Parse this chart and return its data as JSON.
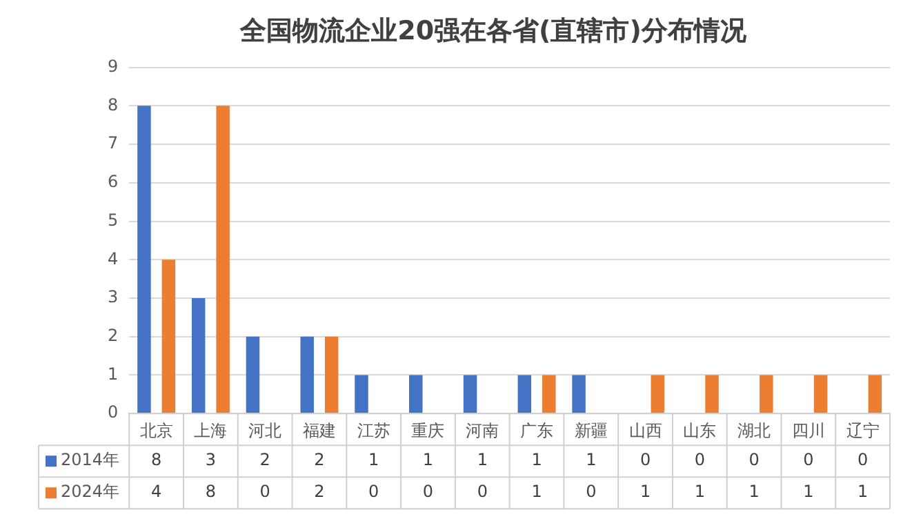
{
  "chart_data": {
    "type": "bar",
    "title": "全国物流企业20强在各省(直辖市)分布情况",
    "categories": [
      "北京",
      "上海",
      "河北",
      "福建",
      "江苏",
      "重庆",
      "河南",
      "广东",
      "新疆",
      "山西",
      "山东",
      "湖北",
      "四川",
      "辽宁"
    ],
    "series": [
      {
        "name": "2014年",
        "color": "#4472c4",
        "values": [
          8,
          3,
          2,
          2,
          1,
          1,
          1,
          1,
          1,
          0,
          0,
          0,
          0,
          0
        ]
      },
      {
        "name": "2024年",
        "color": "#ed7d31",
        "values": [
          4,
          8,
          0,
          2,
          0,
          0,
          0,
          1,
          0,
          1,
          1,
          1,
          1,
          1
        ]
      }
    ],
    "ylim": [
      0,
      9
    ],
    "yticks": [
      0,
      1,
      2,
      3,
      4,
      5,
      6,
      7,
      8,
      9
    ],
    "grid": "y",
    "legend": "bottom",
    "data_labels": true
  }
}
